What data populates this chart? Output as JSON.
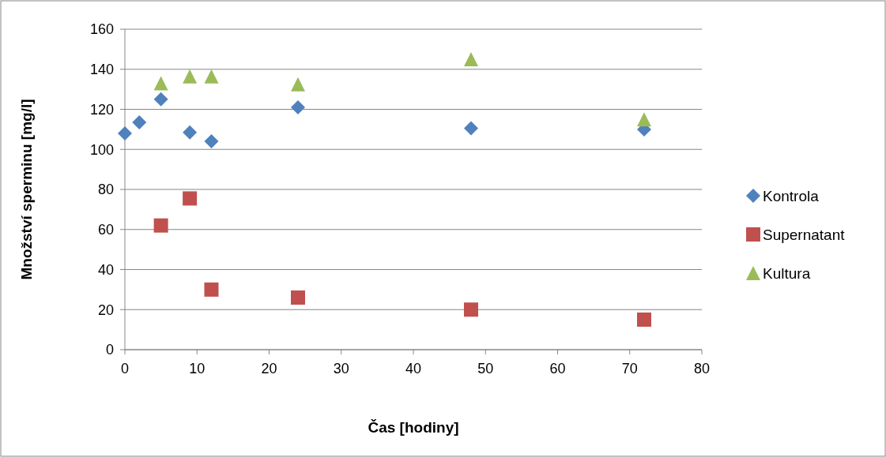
{
  "chart_data": {
    "type": "scatter",
    "xlabel": "Čas  [hodiny]",
    "ylabel": "Množství sperminu [mg/l]",
    "xlim": [
      0,
      80
    ],
    "xticks": [
      0,
      10,
      20,
      30,
      40,
      50,
      60,
      70,
      80
    ],
    "ylim": [
      0,
      160
    ],
    "yticks": [
      0,
      20,
      40,
      60,
      80,
      100,
      120,
      140,
      160
    ],
    "grid": "y",
    "legend": "right",
    "series": [
      {
        "name": "Kontrola",
        "color": "#4f81bd",
        "marker": "diamond",
        "x": [
          0,
          2,
          5,
          9,
          12,
          24,
          48,
          72
        ],
        "values": [
          108,
          113.5,
          125,
          108.5,
          104,
          121,
          110.5,
          110
        ]
      },
      {
        "name": "Supernatant",
        "color": "#c0504d",
        "marker": "square",
        "x": [
          5,
          9,
          12,
          24,
          48,
          72
        ],
        "values": [
          62,
          75.5,
          30,
          26,
          20,
          15
        ]
      },
      {
        "name": "Kultura",
        "color": "#9bbb59",
        "marker": "triangle",
        "x": [
          5,
          9,
          12,
          24,
          48,
          72
        ],
        "values": [
          133,
          136.5,
          136.5,
          132.5,
          145,
          115
        ]
      }
    ]
  }
}
